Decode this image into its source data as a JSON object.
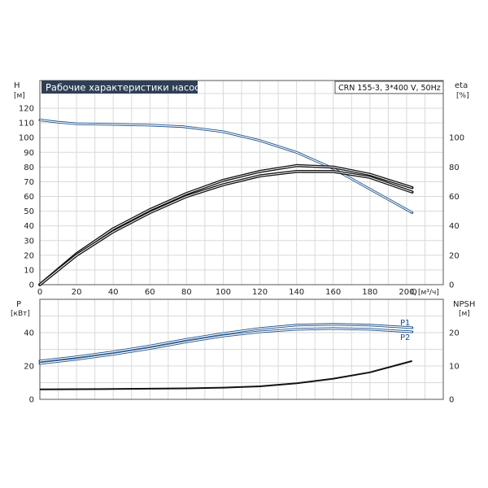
{
  "title": "Рабочие характеристики насоса",
  "model": "CRN 155-3, 3*400 V, 50Hz",
  "colors": {
    "primary_curve": "#1b4f8a",
    "efficiency_curve": "#111111",
    "title_bg": "#2e3f56",
    "title_fg": "#ffffff"
  },
  "chart_data": [
    {
      "type": "line",
      "name": "top-panel",
      "x_axis": {
        "label": "Q",
        "unit": "[м³/ч]",
        "range": [
          0,
          220
        ],
        "ticks": [
          0,
          20,
          40,
          60,
          80,
          100,
          120,
          140,
          160,
          180,
          200
        ]
      },
      "y_left": {
        "label": "H",
        "unit": "[м]",
        "range": [
          0,
          130
        ],
        "ticks": [
          0,
          10,
          20,
          30,
          40,
          50,
          60,
          70,
          80,
          90,
          100,
          110,
          120
        ]
      },
      "y_right": {
        "label": "eta",
        "unit": "[%]",
        "range": [
          0,
          130
        ],
        "ticks": [
          0,
          20,
          40,
          60,
          80,
          100
        ]
      },
      "grid": true,
      "series": [
        {
          "kind": "head",
          "axis": "left",
          "style": "double",
          "x": [
            0,
            10,
            20,
            40,
            60,
            78,
            100,
            120,
            140,
            160,
            180,
            203
          ],
          "y": [
            112,
            110.5,
            109.5,
            109,
            108.5,
            107.5,
            104,
            98,
            90,
            79,
            65,
            49
          ]
        },
        {
          "kind": "efficiency-upper",
          "axis": "right",
          "style": "double",
          "x": [
            0,
            20,
            40,
            60,
            80,
            100,
            120,
            140,
            160,
            180,
            203
          ],
          "y": [
            0,
            21,
            38,
            51,
            62,
            71,
            77,
            81,
            80,
            75,
            66
          ]
        },
        {
          "kind": "efficiency-lower",
          "axis": "right",
          "style": "double",
          "x": [
            0,
            20,
            40,
            60,
            80,
            100,
            120,
            140,
            160,
            180,
            203
          ],
          "y": [
            0,
            20,
            36,
            49,
            60,
            68,
            74,
            77,
            77,
            73,
            63
          ]
        }
      ]
    },
    {
      "type": "line",
      "name": "bottom-panel",
      "x_axis": {
        "range": [
          0,
          220
        ]
      },
      "y_left": {
        "label": "P",
        "unit": "[кВт]",
        "range": [
          0,
          50
        ],
        "ticks": [
          0,
          20,
          40
        ]
      },
      "y_right": {
        "label": "NPSH",
        "unit": "[м]",
        "range": [
          0,
          25
        ],
        "ticks": [
          0,
          10,
          20
        ]
      },
      "grid": true,
      "series": [
        {
          "name": "P1",
          "axis": "left",
          "style": "double",
          "x": [
            0,
            20,
            40,
            60,
            80,
            100,
            120,
            140,
            160,
            180,
            203
          ],
          "y": [
            23,
            25.5,
            28.5,
            32,
            36,
            39.5,
            42.5,
            44.5,
            45,
            44.5,
            43
          ]
        },
        {
          "name": "P2",
          "axis": "left",
          "style": "double",
          "x": [
            0,
            20,
            40,
            60,
            80,
            100,
            120,
            140,
            160,
            180,
            203
          ],
          "y": [
            21.5,
            24,
            27,
            30.5,
            34.5,
            38,
            40.5,
            42,
            42.5,
            42,
            40.5
          ]
        },
        {
          "kind": "npsh",
          "axis": "right",
          "style": "single",
          "x": [
            0,
            40,
            80,
            100,
            120,
            140,
            160,
            180,
            203
          ],
          "y": [
            3,
            3.1,
            3.3,
            3.5,
            3.9,
            4.8,
            6.2,
            8.1,
            11.5
          ]
        }
      ]
    }
  ]
}
